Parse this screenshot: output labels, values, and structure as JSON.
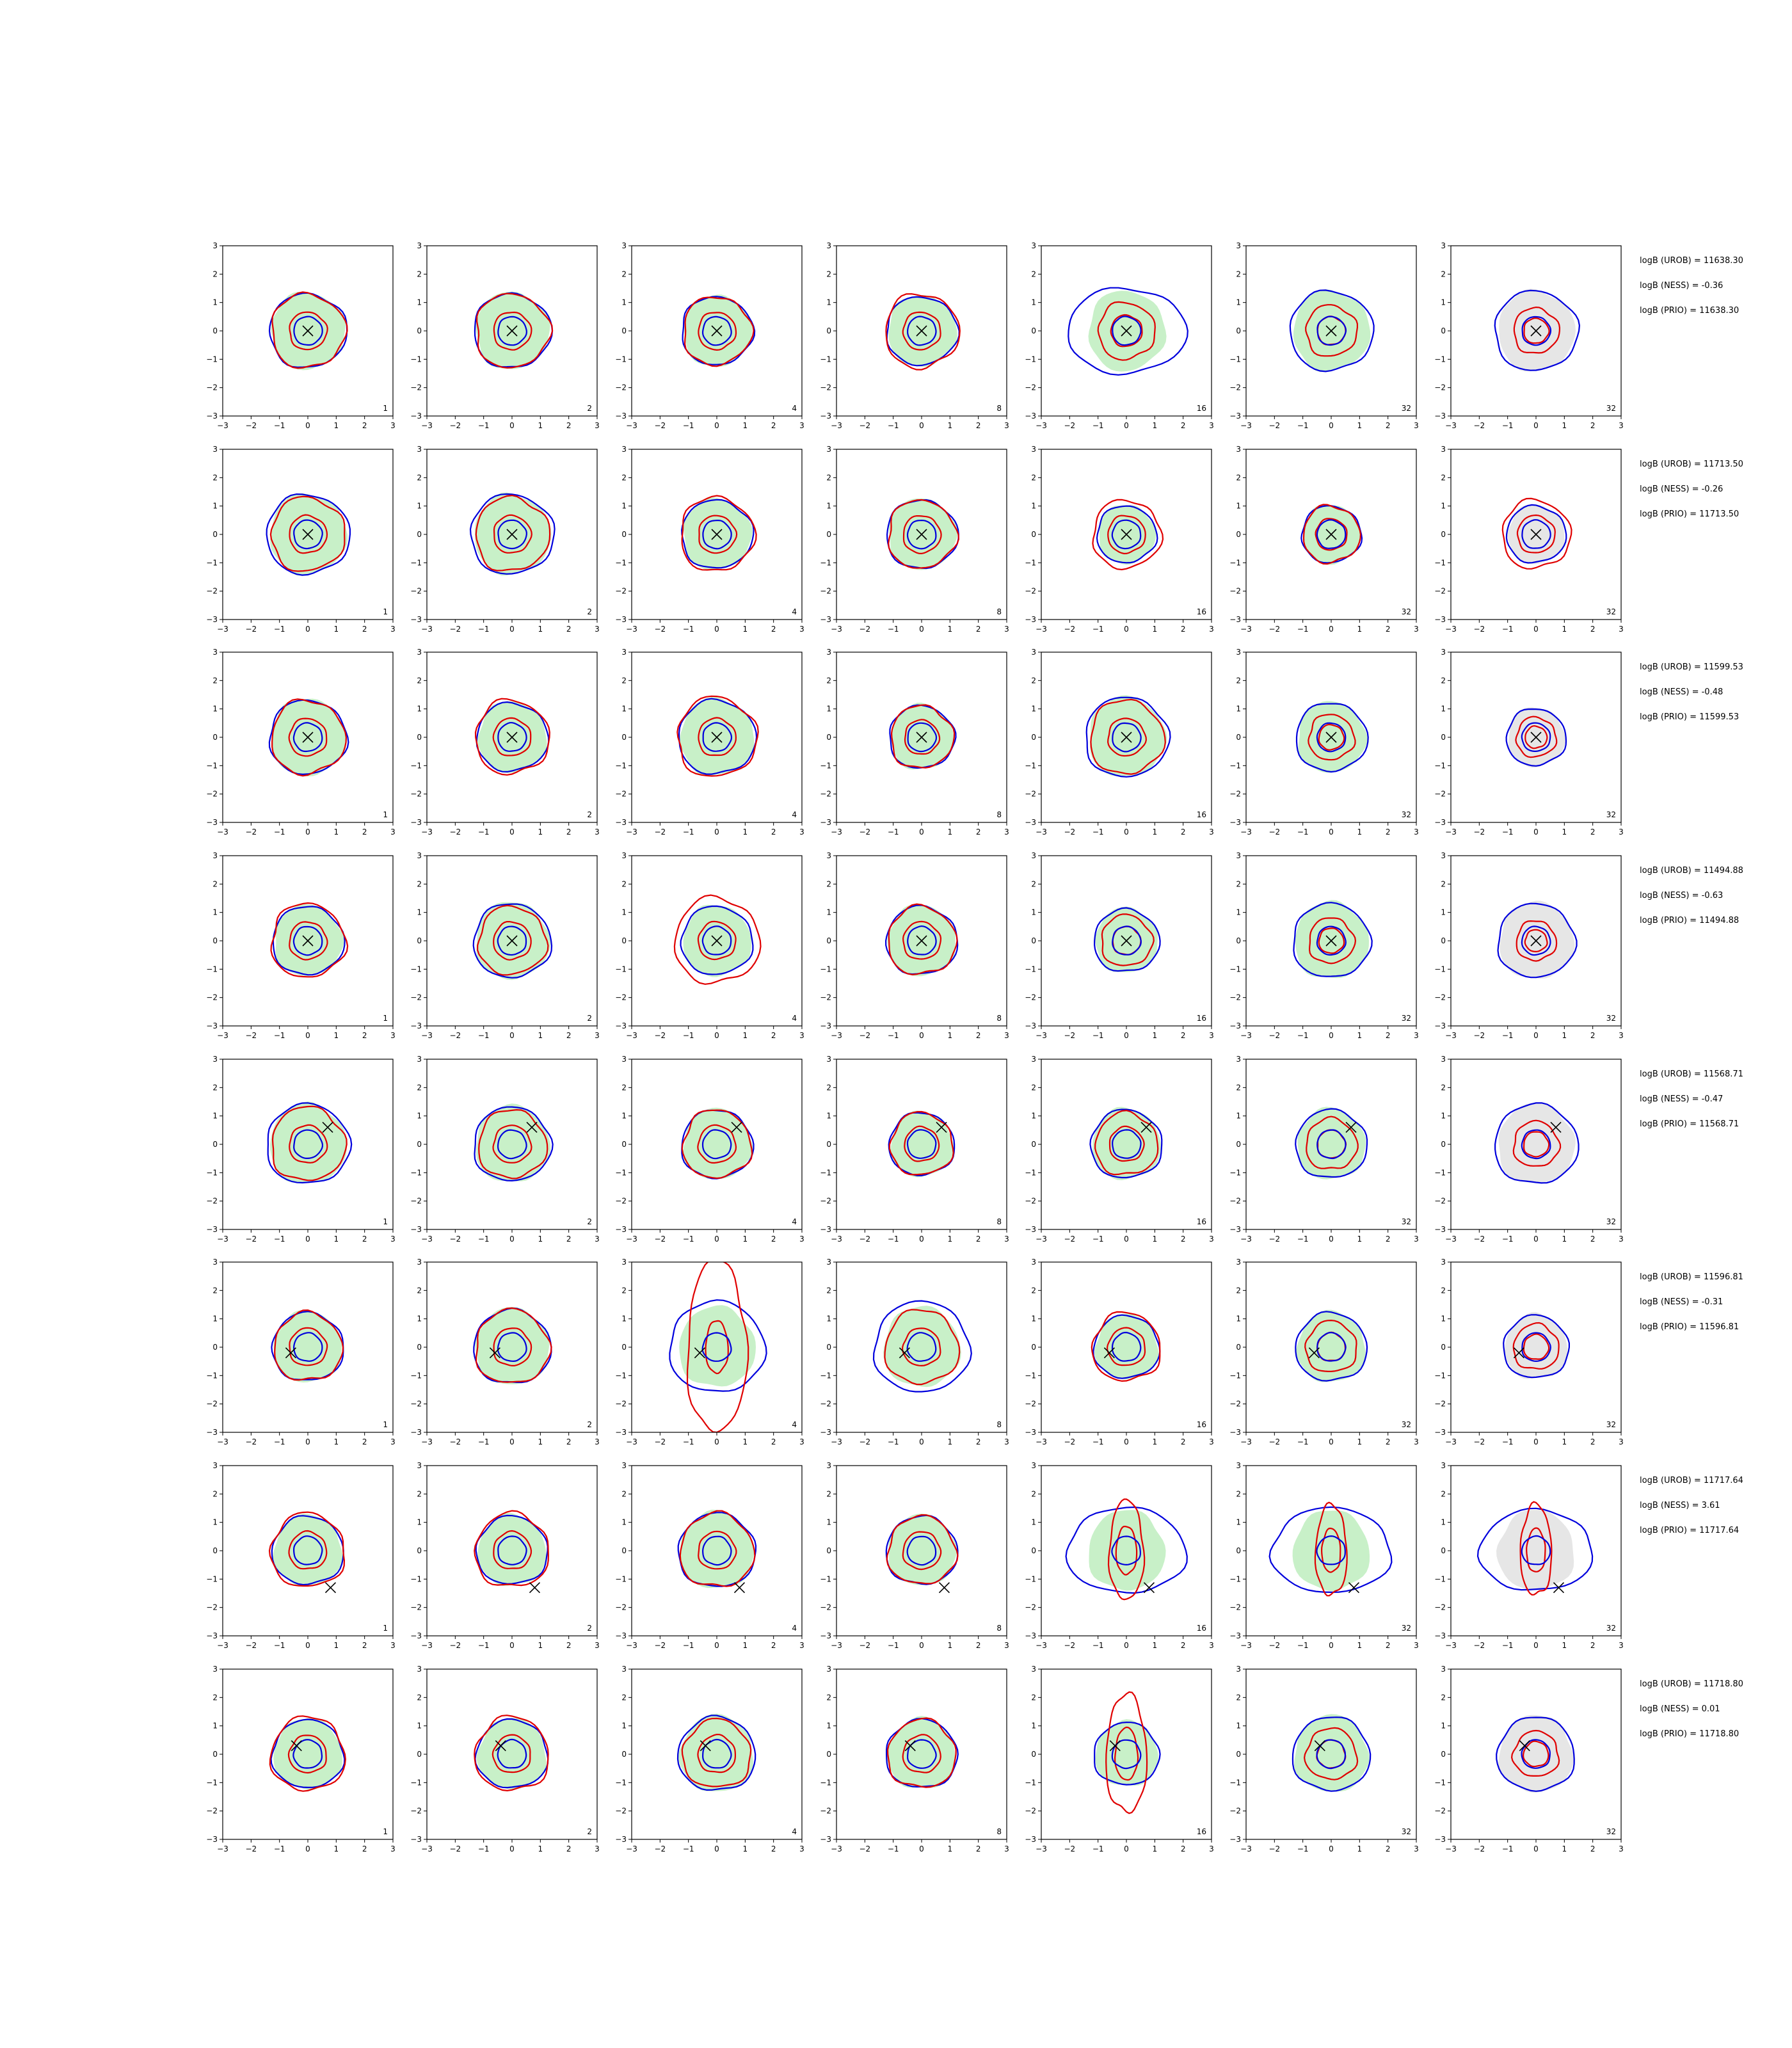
{
  "chart_data": {
    "type": "contour-grid",
    "rows": 8,
    "cols": 7,
    "xlim": [
      -3,
      3
    ],
    "ylim": [
      -3,
      3
    ],
    "ticks": [
      "−3",
      "−2",
      "−1",
      "0",
      "1",
      "2",
      "3"
    ],
    "tick_values": [
      -3,
      -2,
      -1,
      0,
      1,
      2,
      3
    ],
    "panel_labels": [
      "1",
      "2",
      "4",
      "8",
      "16",
      "32",
      "32"
    ],
    "colors": {
      "fill": "#c8f0c8",
      "fill_last": "#e6e6e6",
      "red": "#e00000",
      "blue": "#0000dd",
      "marker": "#000000"
    },
    "rows_data": [
      {
        "marker": [
          0,
          0
        ],
        "stats": [
          "logB (UROB) = 11638.30",
          "logB (NESS) = -0.36",
          "logB (PRIO) = 11638.30"
        ],
        "blue_radius": [
          1.3,
          1.3,
          1.2,
          1.2,
          2.0,
          1.4,
          1.4
        ],
        "red_radius": [
          1.3,
          1.3,
          1.2,
          1.3,
          1.0,
          0.9,
          0.8
        ]
      },
      {
        "marker": [
          0,
          0
        ],
        "stats": [
          "logB (UROB) = 11713.50",
          "logB (NESS) = -0.26",
          "logB (PRIO) = 11713.50"
        ],
        "blue_radius": [
          1.4,
          1.4,
          1.2,
          1.2,
          1.0,
          1.0,
          1.0
        ],
        "red_radius": [
          1.3,
          1.3,
          1.3,
          1.2,
          1.2,
          1.0,
          1.2
        ]
      },
      {
        "marker": [
          0,
          0
        ],
        "stats": [
          "logB (UROB) = 11599.53",
          "logB (NESS) = -0.48",
          "logB (PRIO) = 11599.53"
        ],
        "blue_radius": [
          1.3,
          1.2,
          1.3,
          1.1,
          1.4,
          1.2,
          1.0
        ],
        "red_radius": [
          1.3,
          1.3,
          1.4,
          1.1,
          1.3,
          0.8,
          0.7
        ]
      },
      {
        "marker": [
          0,
          0
        ],
        "stats": [
          "logB (UROB) = 11494.88",
          "logB (NESS) = -0.63",
          "logB (PRIO) = 11494.88"
        ],
        "blue_radius": [
          1.2,
          1.3,
          1.2,
          1.2,
          1.1,
          1.3,
          1.3
        ],
        "red_radius": [
          1.3,
          1.2,
          1.5,
          1.2,
          0.9,
          0.8,
          0.7
        ]
      },
      {
        "marker": [
          0.7,
          0.6
        ],
        "stats": [
          "logB (UROB) = 11568.71",
          "logB (NESS) = -0.47",
          "logB (PRIO) = 11568.71"
        ],
        "blue_radius": [
          1.4,
          1.3,
          1.2,
          1.1,
          1.2,
          1.2,
          1.4
        ],
        "red_radius": [
          1.3,
          1.2,
          1.2,
          1.1,
          1.1,
          0.9,
          0.8
        ]
      },
      {
        "marker": [
          -0.6,
          -0.2
        ],
        "stats": [
          "logB (UROB) = 11596.81",
          "logB (NESS) = -0.31",
          "logB (PRIO) = 11596.81"
        ],
        "blue_radius": [
          1.2,
          1.3,
          1.6,
          1.6,
          1.1,
          1.2,
          1.1
        ],
        "red_radius": [
          1.2,
          1.3,
          1.9,
          1.3,
          1.2,
          0.9,
          0.8
        ]
      },
      {
        "marker": [
          0.8,
          -1.3
        ],
        "stats": [
          "logB (UROB) = 11717.64",
          "logB (NESS) = 3.61",
          "logB (PRIO) = 11717.64"
        ],
        "blue_radius": [
          1.2,
          1.2,
          1.3,
          1.2,
          2.0,
          2.0,
          1.9
        ],
        "red_radius": [
          1.3,
          1.3,
          1.3,
          1.2,
          1.1,
          1.0,
          1.0
        ]
      },
      {
        "marker": [
          -0.4,
          0.3
        ],
        "stats": [
          "logB (UROB) = 11718.80",
          "logB (NESS) = 0.01",
          "logB (PRIO) = 11718.80"
        ],
        "blue_radius": [
          1.2,
          1.2,
          1.3,
          1.2,
          1.1,
          1.3,
          1.3
        ],
        "red_radius": [
          1.3,
          1.3,
          1.2,
          1.2,
          1.3,
          0.9,
          0.8
        ]
      }
    ]
  }
}
